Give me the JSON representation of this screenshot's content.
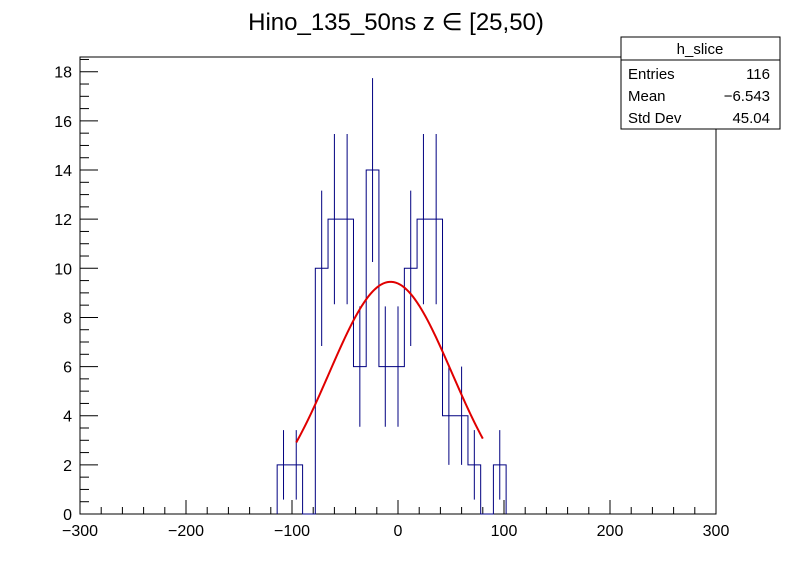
{
  "chart_data": {
    "type": "histogram",
    "title": "Hino_135_50ns z  ∈ [25,50)",
    "xlabel": "",
    "ylabel": "",
    "xlim": [
      -300,
      300
    ],
    "ylim": [
      0,
      18.6
    ],
    "x_ticks": [
      -300,
      -200,
      -100,
      0,
      100,
      200,
      300
    ],
    "x_tick_labels": [
      "−300",
      "−200",
      "−100",
      "0",
      "100",
      "200",
      "300"
    ],
    "y_ticks": [
      0,
      2,
      4,
      6,
      8,
      10,
      12,
      14,
      16,
      18
    ],
    "y_tick_labels": [
      "0",
      "2",
      "4",
      "6",
      "8",
      "10",
      "12",
      "14",
      "16",
      "18"
    ],
    "bin_width": 12,
    "bins": [
      {
        "x": -108,
        "y": 2
      },
      {
        "x": -96,
        "y": 2
      },
      {
        "x": -84,
        "y": 0
      },
      {
        "x": -72,
        "y": 10
      },
      {
        "x": -60,
        "y": 12
      },
      {
        "x": -48,
        "y": 12
      },
      {
        "x": -36,
        "y": 6
      },
      {
        "x": -24,
        "y": 14
      },
      {
        "x": -12,
        "y": 6
      },
      {
        "x": 0,
        "y": 6
      },
      {
        "x": 12,
        "y": 10
      },
      {
        "x": 24,
        "y": 12
      },
      {
        "x": 36,
        "y": 12
      },
      {
        "x": 48,
        "y": 4
      },
      {
        "x": 60,
        "y": 4
      },
      {
        "x": 72,
        "y": 2
      },
      {
        "x": 84,
        "y": 0
      },
      {
        "x": 96,
        "y": 2
      }
    ],
    "fit": {
      "type": "gaussian",
      "constant": 9.45,
      "mean": -7,
      "sigma": 58,
      "x_range": [
        -96,
        80
      ]
    },
    "colors": {
      "histogram": "#000080",
      "fit": "#e00000"
    },
    "stats": {
      "name": "h_slice",
      "rows": [
        {
          "label": "Entries",
          "value": "116"
        },
        {
          "label": "Mean",
          "value": "−6.543"
        },
        {
          "label": "Std Dev",
          "value": "45.04"
        }
      ]
    }
  }
}
